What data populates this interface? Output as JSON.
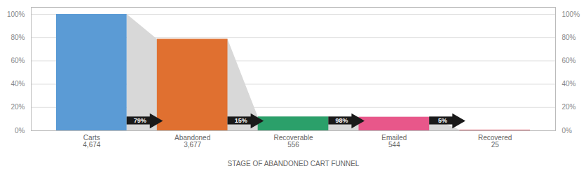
{
  "chart_data": {
    "type": "bar",
    "xlabel": "STAGE OF ABANDONED CART FUNNEL",
    "categories": [
      "Carts",
      "Abandoned",
      "Recoverable",
      "Emailed",
      "Recovered"
    ],
    "values": [
      1.0,
      0.7865,
      0.119,
      0.1164,
      0.00535
    ],
    "colors": [
      "#5b9bd5",
      "#e07030",
      "#2ba06a",
      "#e8578a",
      "#e05060"
    ],
    "counts": [
      4674,
      3677,
      556,
      544,
      25
    ],
    "count_labels": [
      "4,674",
      "3,677",
      "556",
      "544",
      "25"
    ],
    "annotations": [
      "79%",
      "15%",
      "98%",
      "5%"
    ],
    "ylim": [
      0,
      1.06
    ],
    "yticks": [
      {
        "value": 0.0,
        "label": "0%"
      },
      {
        "value": 0.2,
        "label": "20%"
      },
      {
        "value": 0.4,
        "label": "40%"
      },
      {
        "value": 0.6,
        "label": "60%"
      },
      {
        "value": 0.8,
        "label": "80%"
      },
      {
        "value": 1.0,
        "label": "100%"
      }
    ],
    "grid": true
  }
}
